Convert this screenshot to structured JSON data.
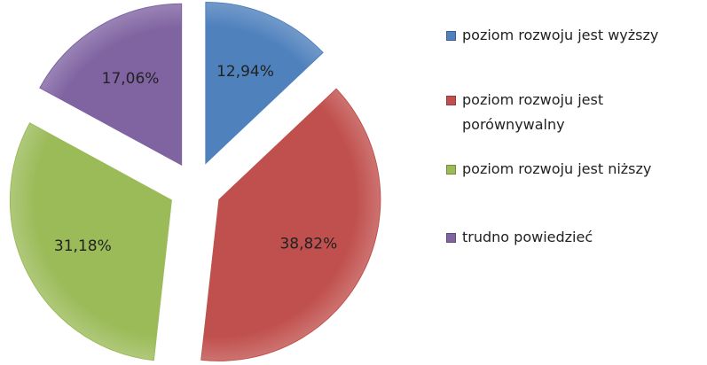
{
  "chart_data": {
    "type": "pie",
    "categories": [
      "poziom rozwoju jest wyższy",
      "poziom rozwoju jest porównywalny",
      "poziom rozwoju jest niższy",
      "trudno powiedzieć"
    ],
    "values": [
      12.94,
      38.82,
      31.18,
      17.06
    ],
    "value_labels": [
      "12,94%",
      "38,82%",
      "31,18%",
      "17,06%"
    ],
    "colors": [
      "#4f81bd",
      "#c0504d",
      "#9bbb59",
      "#8064a2"
    ],
    "legend": "right"
  }
}
